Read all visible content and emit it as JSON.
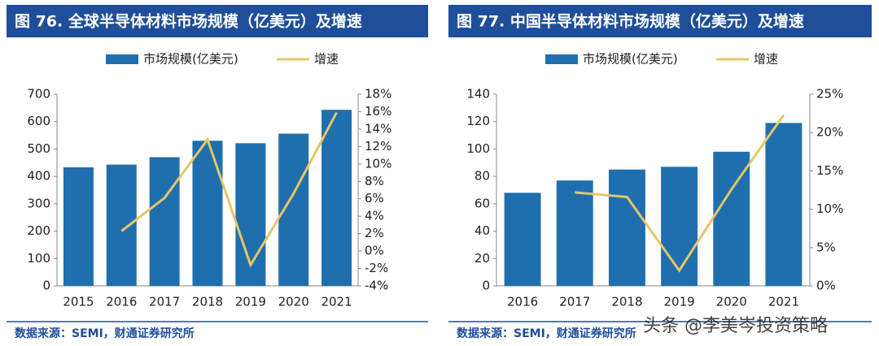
{
  "chart_data": [
    {
      "type": "bar_line",
      "title": "图 76. 全球半导体材料市场规模（亿美元）及增速",
      "categories": [
        "2015",
        "2016",
        "2017",
        "2018",
        "2019",
        "2020",
        "2021"
      ],
      "series": [
        {
          "name": "市场规模(亿美元)",
          "color": "#1f6fae",
          "values": [
            433,
            443,
            470,
            530,
            521,
            556,
            643
          ]
        },
        {
          "name": "增速",
          "color": "#e6c565",
          "axis": "y2",
          "values": [
            null,
            2.3,
            6.1,
            12.8,
            -1.6,
            6.6,
            15.9
          ]
        }
      ],
      "ylim": [
        0,
        700
      ],
      "yticks": [
        0,
        100,
        200,
        300,
        400,
        500,
        600,
        700
      ],
      "y2lim": [
        -4,
        18
      ],
      "y2ticks": [
        {
          "value": -4,
          "label": "-4%"
        },
        {
          "value": -2,
          "label": "-2%"
        },
        {
          "value": 0,
          "label": "0%"
        },
        {
          "value": 2,
          "label": "2%"
        },
        {
          "value": 4,
          "label": "4%"
        },
        {
          "value": 6,
          "label": "6%"
        },
        {
          "value": 8,
          "label": "8%"
        },
        {
          "value": 10,
          "label": "10%"
        },
        {
          "value": 12,
          "label": "12%"
        },
        {
          "value": 14,
          "label": "14%"
        },
        {
          "value": 16,
          "label": "16%"
        },
        {
          "value": 18,
          "label": "18%"
        }
      ],
      "source": "数据来源：SEMI，财通证券研究所"
    },
    {
      "type": "bar_line",
      "title": "图 77. 中国半导体材料市场规模（亿美元）及增速",
      "categories": [
        "2016",
        "2017",
        "2018",
        "2019",
        "2020",
        "2021"
      ],
      "series": [
        {
          "name": "市场规模(亿美元)",
          "color": "#1f6fae",
          "values": [
            68,
            77,
            85,
            87,
            98,
            119
          ]
        },
        {
          "name": "增速",
          "color": "#e6c565",
          "axis": "y2",
          "values": [
            null,
            12.2,
            11.6,
            2.0,
            12.6,
            22.3
          ]
        }
      ],
      "ylim": [
        0,
        140
      ],
      "yticks": [
        0,
        20,
        40,
        60,
        80,
        100,
        120,
        140
      ],
      "y2lim": [
        0,
        25
      ],
      "y2ticks": [
        {
          "value": 0,
          "label": "0%"
        },
        {
          "value": 5,
          "label": "5%"
        },
        {
          "value": 10,
          "label": "10%"
        },
        {
          "value": 15,
          "label": "15%"
        },
        {
          "value": 20,
          "label": "20%"
        },
        {
          "value": 25,
          "label": "25%"
        }
      ],
      "source": "数据来源：SEMI，财通证券研究所"
    }
  ],
  "watermark": "头条 @李美岑投资策略"
}
